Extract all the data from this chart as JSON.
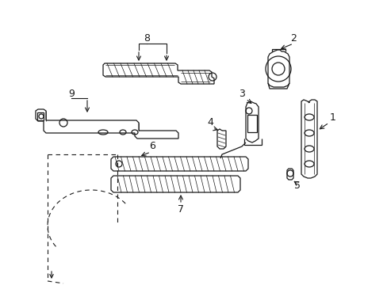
{
  "background_color": "#ffffff",
  "line_color": "#1a1a1a",
  "fig_width": 4.89,
  "fig_height": 3.6,
  "dpi": 100,
  "lw": 0.9
}
